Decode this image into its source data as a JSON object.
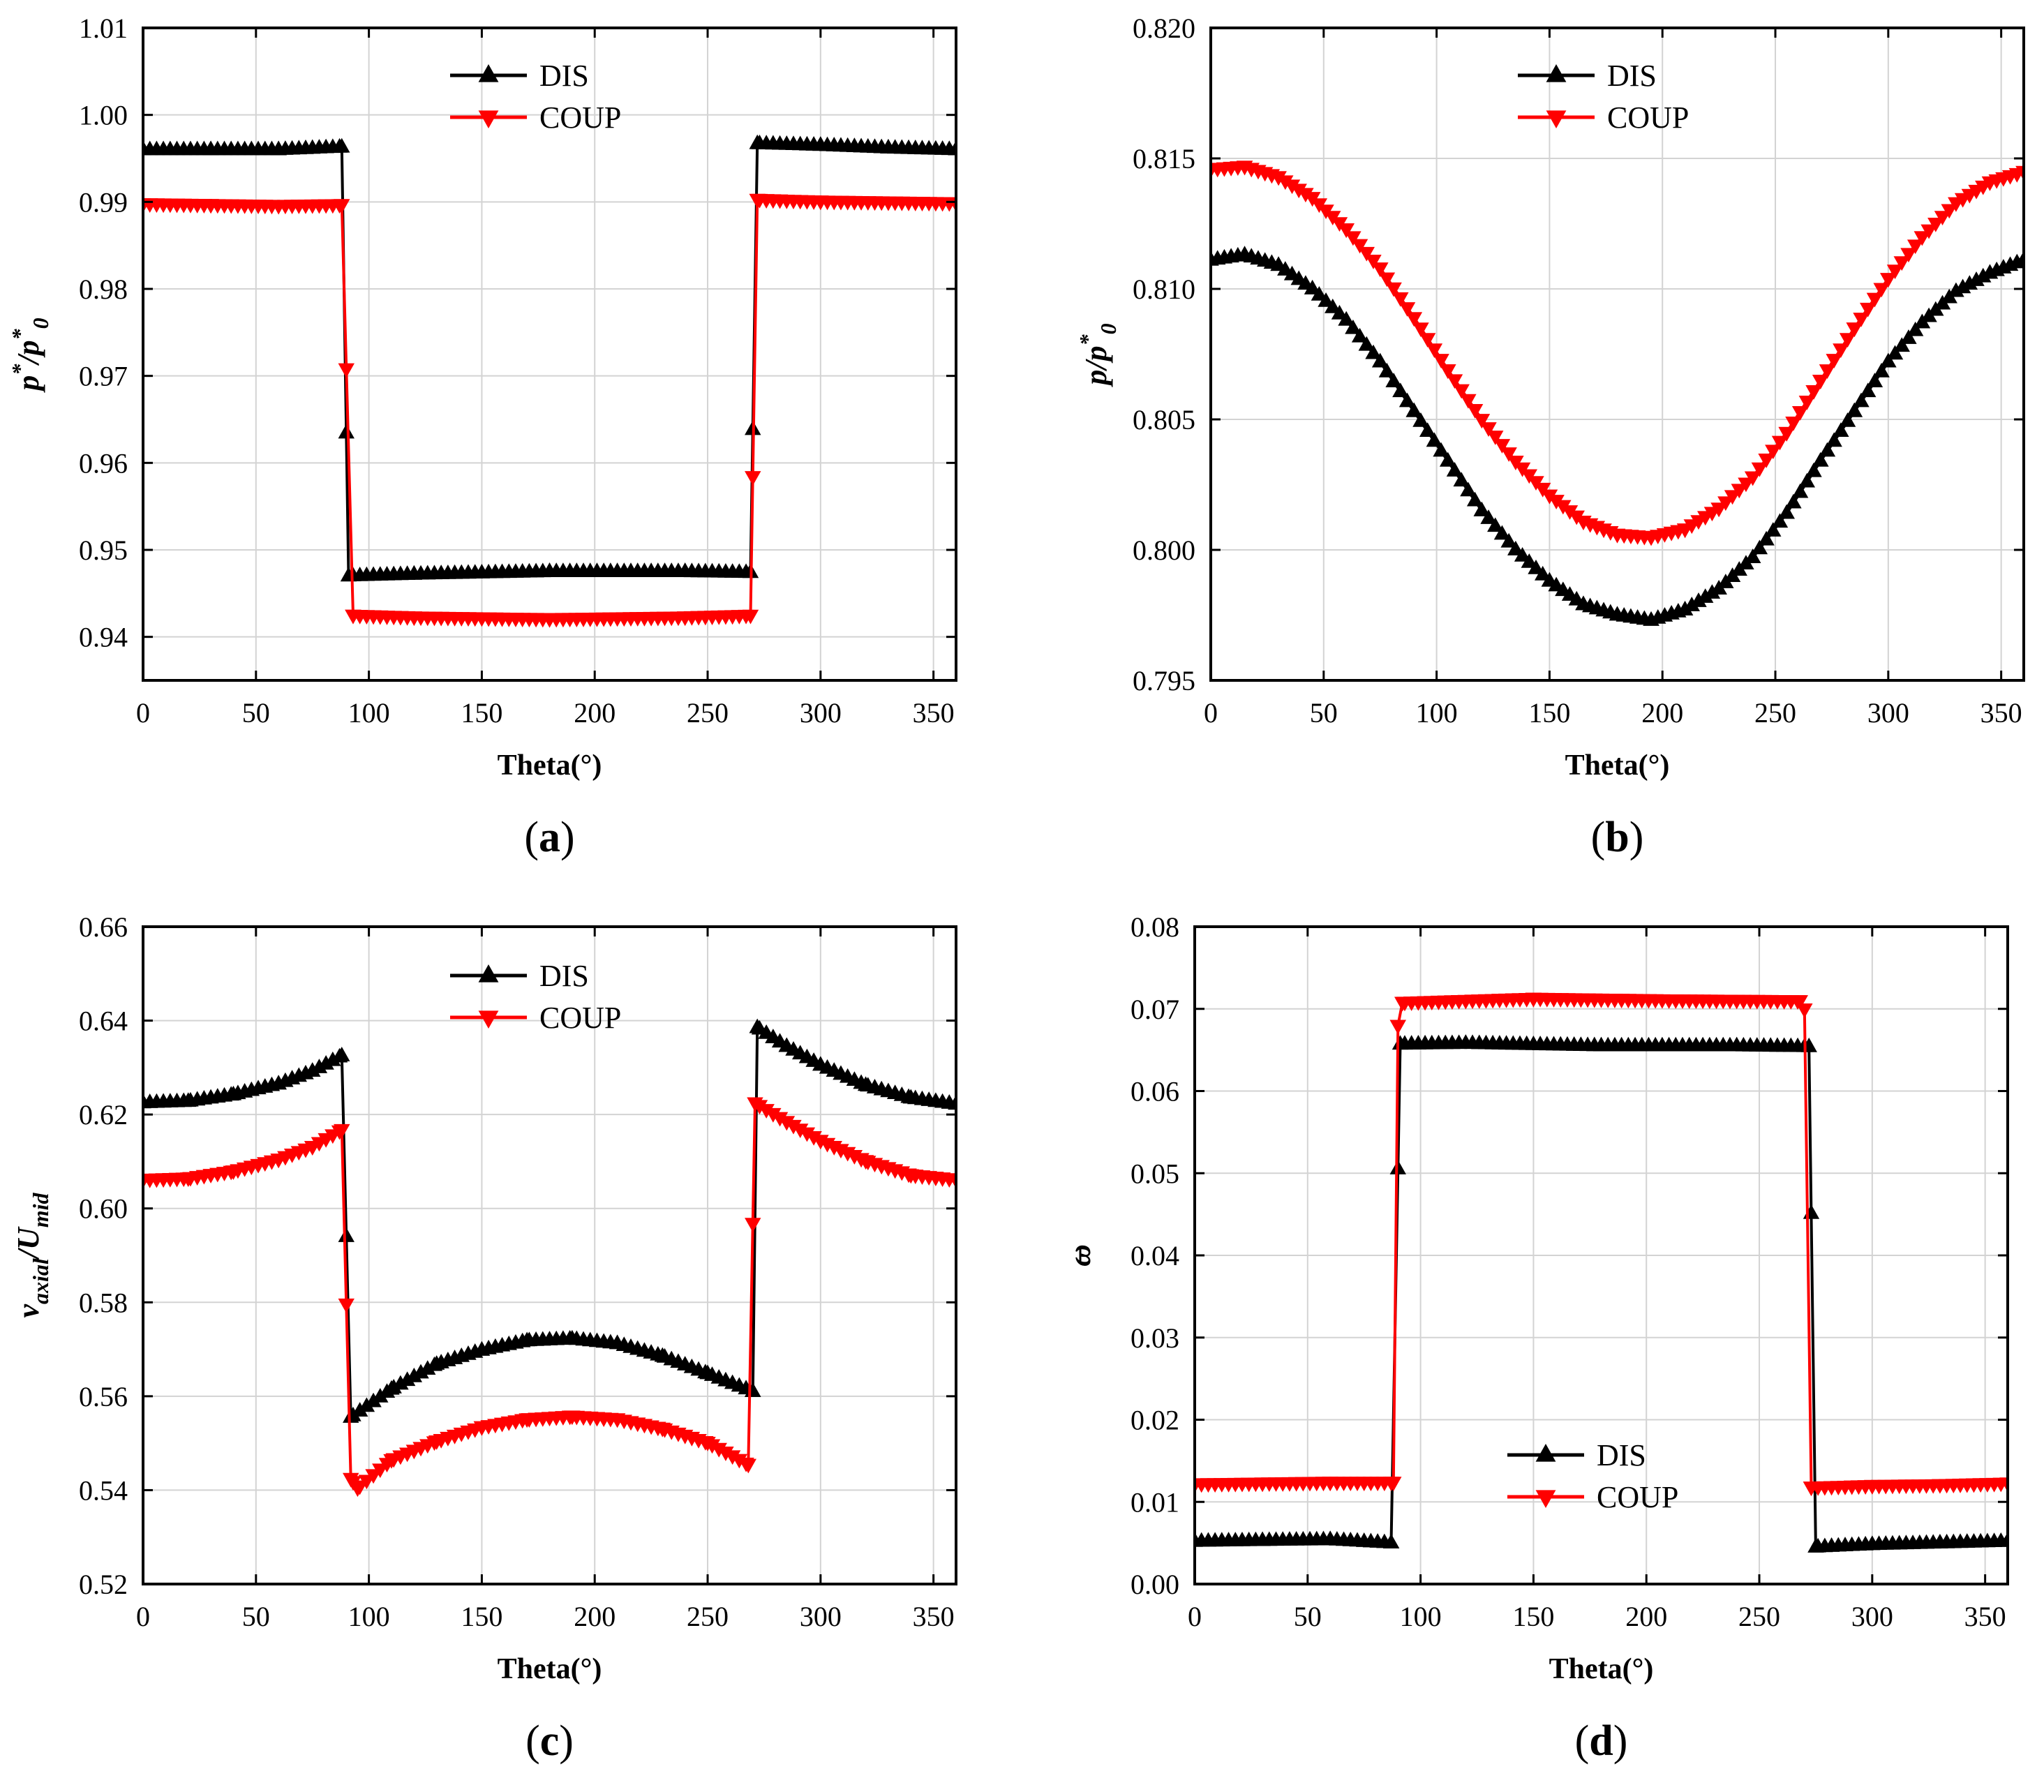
{
  "figure": {
    "colors": {
      "dis": "#000000",
      "coup": "#ff0000",
      "grid": "#d3d3d3"
    }
  },
  "chart_data": [
    {
      "type": "line",
      "panel_label": "a",
      "title": "",
      "xlabel": "Theta(°)",
      "ylabel": {
        "main": "p",
        "sup": "*",
        "slash": "/",
        "sub_main": "p",
        "sub_sub": "0",
        "sub_sup": "*"
      },
      "xlim": [
        0,
        360
      ],
      "ylim": [
        0.935,
        1.01
      ],
      "x_ticks": [
        "0",
        "50",
        "100",
        "150",
        "200",
        "250",
        "300",
        "350"
      ],
      "x_tick_values": [
        0,
        50,
        100,
        150,
        200,
        250,
        300,
        350
      ],
      "y_ticks": [
        "0.94",
        "0.95",
        "0.96",
        "0.97",
        "0.98",
        "0.99",
        "1.00",
        "1.01"
      ],
      "y_tick_values": [
        0.94,
        0.95,
        0.96,
        0.97,
        0.98,
        0.99,
        1.0,
        1.01
      ],
      "grid": true,
      "legend_position": "top-center",
      "series": [
        {
          "name": "DIS",
          "marker": "triangle-up",
          "color": "#000000",
          "x": [
            0,
            30,
            60,
            88,
            91,
            120,
            180,
            240,
            269,
            272,
            300,
            330,
            360
          ],
          "y": [
            0.996,
            0.996,
            0.996,
            0.9963,
            0.947,
            0.9472,
            0.9475,
            0.9475,
            0.9474,
            0.9967,
            0.9965,
            0.9962,
            0.996
          ]
        },
        {
          "name": "COUP",
          "marker": "triangle-down",
          "color": "#ff0000",
          "x": [
            0,
            30,
            60,
            88,
            93,
            120,
            180,
            240,
            269,
            272,
            300,
            330,
            360
          ],
          "y": [
            0.9898,
            0.9897,
            0.9896,
            0.9897,
            0.9425,
            0.9423,
            0.9421,
            0.9423,
            0.9425,
            0.9903,
            0.9901,
            0.99,
            0.9899
          ]
        }
      ]
    },
    {
      "type": "line",
      "panel_label": "b",
      "title": "",
      "xlabel": "Theta(°)",
      "ylabel": {
        "main": "p",
        "sup": "",
        "slash": "/",
        "sub_main": "p",
        "sub_sub": "0",
        "sub_sup": "*"
      },
      "xlim": [
        0,
        360
      ],
      "ylim": [
        0.795,
        0.82
      ],
      "x_ticks": [
        "0",
        "50",
        "100",
        "150",
        "200",
        "250",
        "300",
        "350"
      ],
      "x_tick_values": [
        0,
        50,
        100,
        150,
        200,
        250,
        300,
        350
      ],
      "y_ticks": [
        "0.795",
        "0.800",
        "0.805",
        "0.810",
        "0.815",
        "0.820"
      ],
      "y_tick_values": [
        0.795,
        0.8,
        0.805,
        0.81,
        0.815,
        0.82
      ],
      "grid": true,
      "legend_position": "top-center",
      "series": [
        {
          "name": "DIS",
          "marker": "triangle-up",
          "color": "#000000",
          "x": [
            0,
            15,
            30,
            45,
            60,
            75,
            90,
            105,
            120,
            135,
            150,
            165,
            180,
            195,
            210,
            225,
            240,
            255,
            270,
            285,
            300,
            315,
            330,
            345,
            360
          ],
          "y": [
            0.8111,
            0.8113,
            0.8109,
            0.81,
            0.8088,
            0.8072,
            0.8053,
            0.8034,
            0.8015,
            0.8,
            0.7988,
            0.7979,
            0.7975,
            0.7973,
            0.7977,
            0.7985,
            0.7997,
            0.8014,
            0.8034,
            0.8053,
            0.8072,
            0.8087,
            0.8099,
            0.8106,
            0.8111
          ]
        },
        {
          "name": "COUP",
          "marker": "triangle-down",
          "color": "#ff0000",
          "x": [
            0,
            15,
            30,
            45,
            60,
            75,
            90,
            105,
            120,
            135,
            150,
            165,
            180,
            195,
            210,
            225,
            240,
            255,
            270,
            285,
            300,
            315,
            330,
            345,
            360
          ],
          "y": [
            0.8146,
            0.8147,
            0.8143,
            0.8135,
            0.8123,
            0.8108,
            0.8089,
            0.8069,
            0.805,
            0.8034,
            0.8021,
            0.8011,
            0.8006,
            0.8005,
            0.8008,
            0.8016,
            0.8028,
            0.8045,
            0.8065,
            0.8085,
            0.8104,
            0.812,
            0.8133,
            0.8141,
            0.8145
          ]
        }
      ]
    },
    {
      "type": "line",
      "panel_label": "c",
      "title": "",
      "xlabel": "Theta(°)",
      "ylabel": {
        "main": "v",
        "main_sub": "axial",
        "slash": "/",
        "sub_main": "U",
        "sub_sub": "mid"
      },
      "xlim": [
        0,
        360
      ],
      "ylim": [
        0.52,
        0.66
      ],
      "x_ticks": [
        "0",
        "50",
        "100",
        "150",
        "200",
        "250",
        "300",
        "350"
      ],
      "x_tick_values": [
        0,
        50,
        100,
        150,
        200,
        250,
        300,
        350
      ],
      "y_ticks": [
        "0.52",
        "0.54",
        "0.56",
        "0.58",
        "0.60",
        "0.62",
        "0.64",
        "0.66"
      ],
      "y_tick_values": [
        0.52,
        0.54,
        0.56,
        0.58,
        0.6,
        0.62,
        0.64,
        0.66
      ],
      "grid": true,
      "legend_position": "top-center",
      "series": [
        {
          "name": "DIS",
          "marker": "triangle-up",
          "color": "#000000",
          "x": [
            0,
            20,
            40,
            60,
            75,
            88,
            92,
            110,
            130,
            150,
            170,
            190,
            210,
            230,
            250,
            270,
            272,
            285,
            300,
            320,
            340,
            360
          ],
          "y": [
            0.6225,
            0.6228,
            0.6242,
            0.6265,
            0.6292,
            0.6325,
            0.5555,
            0.5615,
            0.5668,
            0.5698,
            0.5718,
            0.5722,
            0.5712,
            0.5685,
            0.5648,
            0.561,
            0.6385,
            0.6345,
            0.6305,
            0.6262,
            0.6235,
            0.6222
          ]
        },
        {
          "name": "COUP",
          "marker": "triangle-down",
          "color": "#ff0000",
          "x": [
            0,
            20,
            40,
            60,
            75,
            88,
            92,
            95,
            110,
            130,
            150,
            170,
            190,
            210,
            230,
            250,
            268,
            271,
            285,
            300,
            320,
            340,
            360
          ],
          "y": [
            0.6062,
            0.6065,
            0.608,
            0.6105,
            0.6132,
            0.6168,
            0.5425,
            0.5405,
            0.5465,
            0.5505,
            0.5535,
            0.5552,
            0.5558,
            0.5552,
            0.5532,
            0.5502,
            0.5455,
            0.6225,
            0.6185,
            0.6145,
            0.6102,
            0.6072,
            0.6062
          ]
        }
      ]
    },
    {
      "type": "line",
      "panel_label": "d",
      "title": "",
      "xlabel": "Theta(°)",
      "ylabel": {
        "main": "ω",
        "overbar": true
      },
      "xlim": [
        0,
        360
      ],
      "ylim": [
        0.0,
        0.08
      ],
      "x_ticks": [
        "0",
        "50",
        "100",
        "150",
        "200",
        "250",
        "300",
        "350"
      ],
      "x_tick_values": [
        0,
        50,
        100,
        150,
        200,
        250,
        300,
        350
      ],
      "y_ticks": [
        "0.00",
        "0.01",
        "0.02",
        "0.03",
        "0.04",
        "0.05",
        "0.06",
        "0.07",
        "0.08"
      ],
      "y_tick_values": [
        0.0,
        0.01,
        0.02,
        0.03,
        0.04,
        0.05,
        0.06,
        0.07,
        0.08
      ],
      "grid": true,
      "legend_position": "bottom-center",
      "series": [
        {
          "name": "DIS",
          "marker": "triangle-up",
          "color": "#000000",
          "x": [
            0,
            30,
            60,
            87,
            91,
            120,
            180,
            240,
            272,
            275,
            300,
            330,
            360
          ],
          "y": [
            0.0052,
            0.0053,
            0.0054,
            0.005,
            0.0657,
            0.0658,
            0.0655,
            0.0655,
            0.0654,
            0.0045,
            0.0048,
            0.005,
            0.0052
          ]
        },
        {
          "name": "COUP",
          "marker": "triangle-down",
          "color": "#ff0000",
          "x": [
            0,
            30,
            60,
            88,
            90,
            92,
            150,
            210,
            268,
            270,
            273,
            300,
            330,
            360
          ],
          "y": [
            0.0122,
            0.0123,
            0.0124,
            0.0124,
            0.068,
            0.0708,
            0.0713,
            0.0711,
            0.071,
            0.07,
            0.0118,
            0.012,
            0.0121,
            0.0123
          ]
        }
      ]
    }
  ]
}
